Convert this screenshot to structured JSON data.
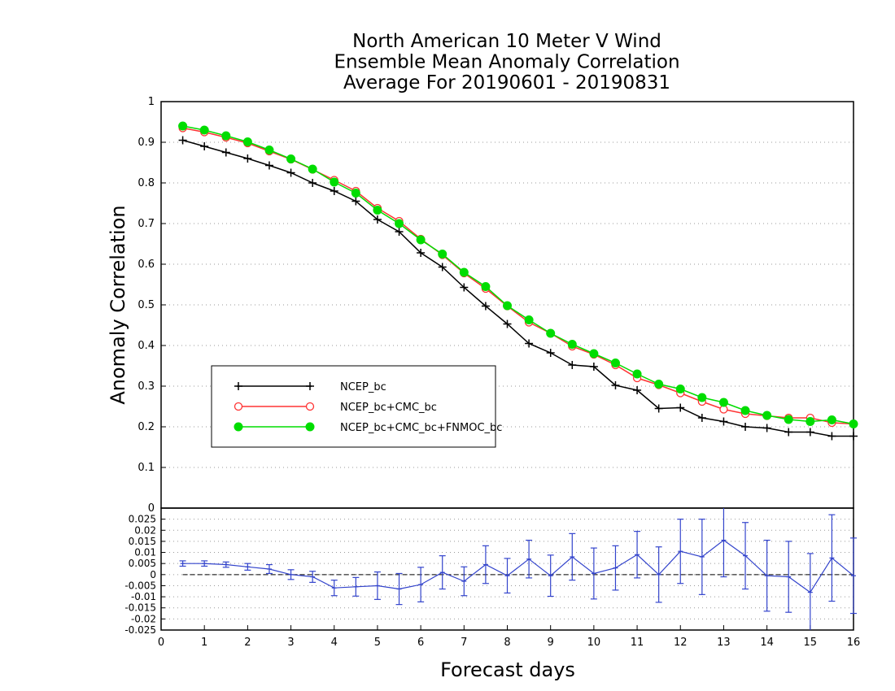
{
  "chart_data": [
    {
      "type": "line",
      "title": [
        "North American 10 Meter V Wind",
        "Ensemble Mean Anomaly Correlation",
        "Average For 20190601 - 20190831"
      ],
      "ylabel": "Anomaly Correlation",
      "ylim": [
        0,
        1
      ],
      "yticks": [
        "0.1",
        "0.2",
        "0.3",
        "0.4",
        "0.5",
        "0.6",
        "0.7",
        "0.8",
        "0.9",
        "1"
      ],
      "grid": true,
      "legend_position": "lower-left",
      "x": [
        0.5,
        1,
        1.5,
        2,
        2.5,
        3,
        3.5,
        4,
        4.5,
        5,
        5.5,
        6,
        6.5,
        7,
        7.5,
        8,
        8.5,
        9,
        9.5,
        10,
        10.5,
        11,
        11.5,
        12,
        12.5,
        13,
        13.5,
        14,
        14.5,
        15,
        15.5,
        16
      ],
      "series": [
        {
          "name": "NCEP_bc",
          "color": "#000000",
          "marker": "plus",
          "values": [
            0.905,
            0.89,
            0.875,
            0.86,
            0.843,
            0.825,
            0.8,
            0.78,
            0.755,
            0.71,
            0.68,
            0.628,
            0.593,
            0.543,
            0.497,
            0.453,
            0.405,
            0.382,
            0.352,
            0.348,
            0.302,
            0.29,
            0.245,
            0.247,
            0.222,
            0.213,
            0.2,
            0.197,
            0.187,
            0.187,
            0.177,
            0.177
          ]
        },
        {
          "name": "NCEP_bc+CMC_bc",
          "color": "#ff3333",
          "marker": "open-circle",
          "values": [
            0.935,
            0.925,
            0.912,
            0.898,
            0.878,
            0.858,
            0.833,
            0.807,
            0.78,
            0.738,
            0.706,
            0.662,
            0.623,
            0.578,
            0.54,
            0.497,
            0.457,
            0.43,
            0.398,
            0.378,
            0.352,
            0.32,
            0.303,
            0.283,
            0.262,
            0.243,
            0.232,
            0.227,
            0.222,
            0.222,
            0.21,
            0.207
          ]
        },
        {
          "name": "NCEP_bc+CMC_bc+FNMOC_bc",
          "color": "#00dd00",
          "marker": "filled-circle",
          "values": [
            0.94,
            0.93,
            0.916,
            0.901,
            0.881,
            0.859,
            0.834,
            0.802,
            0.775,
            0.733,
            0.7,
            0.66,
            0.625,
            0.58,
            0.545,
            0.498,
            0.463,
            0.43,
            0.403,
            0.38,
            0.357,
            0.33,
            0.305,
            0.293,
            0.272,
            0.26,
            0.24,
            0.228,
            0.218,
            0.213,
            0.217,
            0.207
          ]
        }
      ]
    },
    {
      "type": "line",
      "subtype": "difference-with-error-bars",
      "xlabel": "Forecast days",
      "xlim": [
        0,
        16
      ],
      "xticks": [
        "0",
        "1",
        "2",
        "3",
        "4",
        "5",
        "6",
        "7",
        "8",
        "9",
        "10",
        "11",
        "12",
        "13",
        "14",
        "15",
        "16"
      ],
      "ylim": [
        -0.025,
        0.03
      ],
      "yticks": [
        "-0.025",
        "-0.02",
        "-0.015",
        "-0.01",
        "-0.005",
        "0",
        "0.005",
        "0.01",
        "0.015",
        "0.02",
        "0.025"
      ],
      "ytick_top": "0",
      "grid": true,
      "color": "#3344cc",
      "x": [
        0.5,
        1,
        1.5,
        2,
        2.5,
        3,
        3.5,
        4,
        4.5,
        5,
        5.5,
        6,
        6.5,
        7,
        7.5,
        8,
        8.5,
        9,
        9.5,
        10,
        10.5,
        11,
        11.5,
        12,
        12.5,
        13,
        13.5,
        14,
        14.5,
        15,
        15.5,
        16
      ],
      "values": [
        0.005,
        0.005,
        0.0045,
        0.0035,
        0.0025,
        0,
        -0.001,
        -0.006,
        -0.0055,
        -0.005,
        -0.0065,
        -0.0045,
        0.001,
        -0.003,
        0.0045,
        -0.0005,
        0.007,
        -0.0005,
        0.008,
        0.0005,
        0.003,
        0.009,
        0,
        0.0105,
        0.008,
        0.0155,
        0.0085,
        -0.0005,
        -0.001,
        -0.008,
        0.0075,
        -0.0005
      ],
      "errors": [
        0.0012,
        0.0012,
        0.0012,
        0.0015,
        0.002,
        0.0022,
        0.0025,
        0.0035,
        0.0042,
        0.0062,
        0.007,
        0.0078,
        0.0075,
        0.0065,
        0.0085,
        0.0078,
        0.0085,
        0.0093,
        0.0105,
        0.0115,
        0.01,
        0.0105,
        0.0125,
        0.0145,
        0.017,
        0.0165,
        0.015,
        0.016,
        0.016,
        0.0175,
        0.0195,
        0.017
      ]
    }
  ]
}
